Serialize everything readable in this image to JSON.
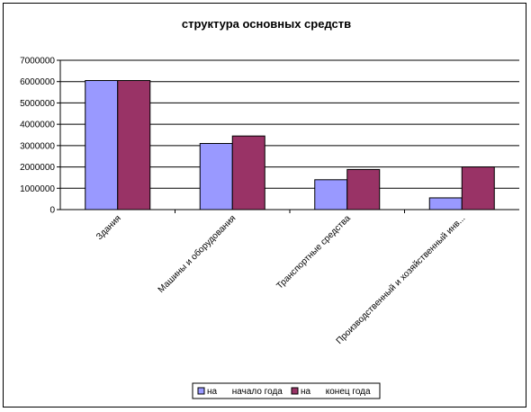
{
  "chart_data": {
    "type": "bar",
    "title": "структура основных средств",
    "categories": [
      "Здания",
      "Машины и оборудования",
      "Транспортные средства",
      "Производственный и хозяйственный инв..."
    ],
    "series": [
      {
        "name": "на      начало года",
        "color": "#9999ff",
        "values": [
          6050000,
          3100000,
          1400000,
          550000
        ]
      },
      {
        "name": "на      конец года",
        "color": "#993366",
        "values": [
          6050000,
          3450000,
          1880000,
          2000000
        ]
      }
    ],
    "ylim": [
      0,
      7000000
    ],
    "yticks": [
      0,
      1000000,
      2000000,
      3000000,
      4000000,
      5000000,
      6000000,
      7000000
    ],
    "ytick_labels": [
      "0",
      "1000000",
      "2000000",
      "3000000",
      "4000000",
      "5000000",
      "6000000",
      "7000000"
    ],
    "grid": true,
    "legend_position": "bottom-right"
  }
}
